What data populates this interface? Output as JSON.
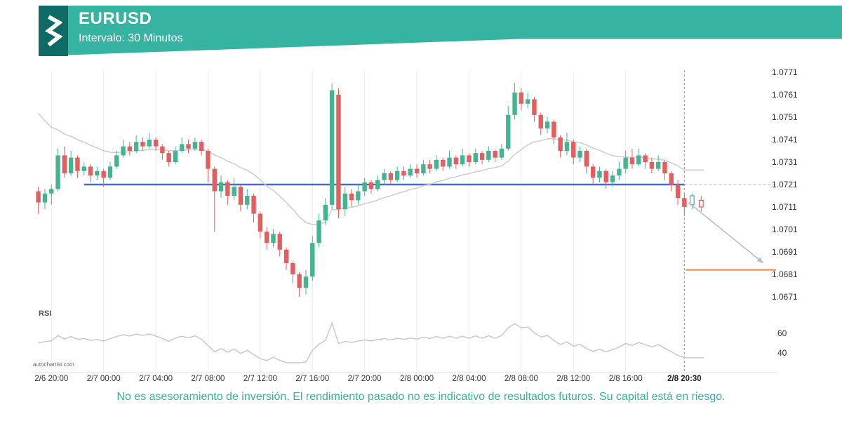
{
  "header": {
    "title": "EURUSD",
    "subtitle": "Intervalo: 30 Minutos"
  },
  "branding": {
    "watermark": "autochartist.com"
  },
  "footer": {
    "disclaimer": "No es asesoramiento de inversión. El rendimiento pasado no es indicativo de resultados futuros. Su capital está en riesgo."
  },
  "colors": {
    "accent_teal": "#36b3a1",
    "logo_teal": "#0d6a64",
    "candle_up": "#43b492",
    "candle_down": "#e45d5f",
    "support_blue": "#3e6fca",
    "target_orange": "#ef8349",
    "ma_gray": "#cfcfcf",
    "rsi_gray": "#c9c9c9"
  },
  "chart_data": {
    "type": "candlestick",
    "symbol": "EURUSD",
    "interval": "30 Minutos",
    "title": "EURUSD 30 minute candlestick chart with support breakout and downside forecast",
    "ylim": [
      1.0665,
      1.0775
    ],
    "grid": "vertical-only",
    "y_tick_labels": [
      "1.0771",
      "1.0761",
      "1.0751",
      "1.0741",
      "1.0731",
      "1.0721",
      "1.0711",
      "1.0701",
      "1.0691",
      "1.0681",
      "1.0671"
    ],
    "x_tick_labels": [
      "2/6 20:00",
      "2/7 00:00",
      "2/7 04:00",
      "2/7 08:00",
      "2/7 12:00",
      "2/7 16:00",
      "2/7 20:00",
      "2/8 00:00",
      "2/8 04:00",
      "2/8 08:00",
      "2/8 12:00",
      "2/8 16:00",
      "2/8 20:30"
    ],
    "x_tick_indices": [
      2,
      10,
      18,
      26,
      34,
      42,
      50,
      58,
      66,
      74,
      82,
      90,
      99
    ],
    "candles": [
      [
        1.0718,
        1.072,
        1.0708,
        1.0713
      ],
      [
        1.0713,
        1.0719,
        1.071,
        1.0717
      ],
      [
        1.0717,
        1.0721,
        1.0712,
        1.0719
      ],
      [
        1.0719,
        1.0737,
        1.0718,
        1.0734
      ],
      [
        1.0734,
        1.0738,
        1.0724,
        1.0726
      ],
      [
        1.0726,
        1.0736,
        1.0725,
        1.0733
      ],
      [
        1.0733,
        1.0734,
        1.0724,
        1.0727
      ],
      [
        1.0727,
        1.0731,
        1.0725,
        1.0729
      ],
      [
        1.0729,
        1.073,
        1.0722,
        1.0725
      ],
      [
        1.0725,
        1.0729,
        1.0723,
        1.0727
      ],
      [
        1.0727,
        1.0728,
        1.072,
        1.0724
      ],
      [
        1.0724,
        1.0731,
        1.0723,
        1.0729
      ],
      [
        1.0729,
        1.0736,
        1.0728,
        1.0734
      ],
      [
        1.0734,
        1.0741,
        1.0733,
        1.0738
      ],
      [
        1.0738,
        1.074,
        1.0734,
        1.0736
      ],
      [
        1.0736,
        1.0743,
        1.0735,
        1.074
      ],
      [
        1.074,
        1.0742,
        1.0736,
        1.0738
      ],
      [
        1.0738,
        1.0744,
        1.0737,
        1.0741
      ],
      [
        1.0741,
        1.0742,
        1.0736,
        1.0738
      ],
      [
        1.0738,
        1.0739,
        1.0732,
        1.0735
      ],
      [
        1.0735,
        1.0736,
        1.0729,
        1.0731
      ],
      [
        1.0731,
        1.0738,
        1.073,
        1.0736
      ],
      [
        1.0736,
        1.0742,
        1.0735,
        1.0739
      ],
      [
        1.0739,
        1.0741,
        1.0735,
        1.0737
      ],
      [
        1.0737,
        1.0742,
        1.0736,
        1.074
      ],
      [
        1.074,
        1.0741,
        1.0734,
        1.0736
      ],
      [
        1.0736,
        1.0737,
        1.0722,
        1.0728
      ],
      [
        1.0728,
        1.0729,
        1.07,
        1.0718
      ],
      [
        1.0718,
        1.0725,
        1.0715,
        1.0722
      ],
      [
        1.0722,
        1.0723,
        1.0712,
        1.0716
      ],
      [
        1.0716,
        1.0724,
        1.0714,
        1.072
      ],
      [
        1.072,
        1.0721,
        1.0709,
        1.0712
      ],
      [
        1.0712,
        1.0719,
        1.071,
        1.0716
      ],
      [
        1.0716,
        1.0717,
        1.0704,
        1.0708
      ],
      [
        1.0708,
        1.0709,
        1.0697,
        1.07
      ],
      [
        1.07,
        1.0702,
        1.0692,
        1.0695
      ],
      [
        1.0695,
        1.0701,
        1.0693,
        1.0699
      ],
      [
        1.0699,
        1.07,
        1.0689,
        1.0692
      ],
      [
        1.0692,
        1.0693,
        1.0683,
        1.0686
      ],
      [
        1.0686,
        1.0687,
        1.0677,
        1.0681
      ],
      [
        1.0681,
        1.0682,
        1.0671,
        1.0675
      ],
      [
        1.0675,
        1.0683,
        1.0672,
        1.068
      ],
      [
        1.068,
        1.0698,
        1.0678,
        1.0695
      ],
      [
        1.0695,
        1.0708,
        1.0693,
        1.0705
      ],
      [
        1.0705,
        1.0715,
        1.0703,
        1.0712
      ],
      [
        1.0712,
        1.0766,
        1.071,
        1.0763
      ],
      [
        1.0761,
        1.0764,
        1.0706,
        1.071
      ],
      [
        1.071,
        1.072,
        1.0707,
        1.0717
      ],
      [
        1.0717,
        1.0719,
        1.0711,
        1.0714
      ],
      [
        1.0714,
        1.0721,
        1.0712,
        1.0718
      ],
      [
        1.0718,
        1.0724,
        1.0716,
        1.0722
      ],
      [
        1.0722,
        1.0723,
        1.0717,
        1.0719
      ],
      [
        1.0719,
        1.0725,
        1.0718,
        1.0723
      ],
      [
        1.0723,
        1.0728,
        1.0721,
        1.0726
      ],
      [
        1.0726,
        1.0727,
        1.0721,
        1.0723
      ],
      [
        1.0723,
        1.0729,
        1.0722,
        1.0727
      ],
      [
        1.0727,
        1.0729,
        1.0723,
        1.0725
      ],
      [
        1.0725,
        1.073,
        1.0724,
        1.0728
      ],
      [
        1.0728,
        1.073,
        1.0724,
        1.0726
      ],
      [
        1.0726,
        1.0732,
        1.0725,
        1.073
      ],
      [
        1.073,
        1.0732,
        1.0726,
        1.0728
      ],
      [
        1.0728,
        1.0734,
        1.0727,
        1.0732
      ],
      [
        1.0732,
        1.0733,
        1.0727,
        1.0729
      ],
      [
        1.0729,
        1.0736,
        1.0728,
        1.0733
      ],
      [
        1.0733,
        1.0734,
        1.0728,
        1.073
      ],
      [
        1.073,
        1.0737,
        1.0729,
        1.0734
      ],
      [
        1.0734,
        1.0735,
        1.0729,
        1.0731
      ],
      [
        1.0731,
        1.0737,
        1.073,
        1.0735
      ],
      [
        1.0735,
        1.0736,
        1.073,
        1.0732
      ],
      [
        1.0732,
        1.0738,
        1.0731,
        1.0736
      ],
      [
        1.0736,
        1.0737,
        1.0731,
        1.0733
      ],
      [
        1.0733,
        1.0739,
        1.0732,
        1.0737
      ],
      [
        1.0737,
        1.0756,
        1.0736,
        1.0752
      ],
      [
        1.0752,
        1.0766,
        1.075,
        1.0762
      ],
      [
        1.0762,
        1.0764,
        1.0754,
        1.0757
      ],
      [
        1.0757,
        1.0762,
        1.0755,
        1.0759
      ],
      [
        1.0759,
        1.076,
        1.0749,
        1.0752
      ],
      [
        1.0752,
        1.0753,
        1.0743,
        1.0746
      ],
      [
        1.0746,
        1.0751,
        1.0744,
        1.0749
      ],
      [
        1.0749,
        1.075,
        1.0739,
        1.0742
      ],
      [
        1.0742,
        1.0743,
        1.0733,
        1.0736
      ],
      [
        1.0736,
        1.0744,
        1.0734,
        1.074
      ],
      [
        1.074,
        1.0741,
        1.073,
        1.0733
      ],
      [
        1.0733,
        1.0738,
        1.0731,
        1.0736
      ],
      [
        1.0736,
        1.0737,
        1.0726,
        1.0729
      ],
      [
        1.0729,
        1.073,
        1.0721,
        1.0724
      ],
      [
        1.0724,
        1.0729,
        1.0722,
        1.0727
      ],
      [
        1.0727,
        1.0728,
        1.0719,
        1.0722
      ],
      [
        1.0722,
        1.0727,
        1.072,
        1.0725
      ],
      [
        1.0725,
        1.0731,
        1.0723,
        1.0728
      ],
      [
        1.0728,
        1.0736,
        1.0726,
        1.0733
      ],
      [
        1.0733,
        1.0737,
        1.0728,
        1.073
      ],
      [
        1.073,
        1.0737,
        1.0729,
        1.0734
      ],
      [
        1.0734,
        1.0735,
        1.0728,
        1.0731
      ],
      [
        1.0731,
        1.0733,
        1.0726,
        1.0728
      ],
      [
        1.0728,
        1.0734,
        1.0727,
        1.0731
      ],
      [
        1.0731,
        1.0732,
        1.0723,
        1.0726
      ],
      [
        1.0726,
        1.0727,
        1.0718,
        1.0721
      ],
      [
        1.0721,
        1.0723,
        1.0712,
        1.0715
      ],
      [
        1.0715,
        1.0717,
        1.0707,
        1.0711
      ]
    ],
    "forecast_candles": [
      {
        "o": 1.0712,
        "h": 1.0717,
        "l": 1.071,
        "c": 1.0716,
        "dir": "up"
      },
      {
        "o": 1.0714,
        "h": 1.0716,
        "l": 1.0709,
        "c": 1.0711,
        "dir": "down"
      }
    ],
    "support_line": {
      "price": 1.0721,
      "start_index": 7
    },
    "target_line": {
      "price": 1.0683
    },
    "forecast_arrow": {
      "from_price": 1.0713,
      "to_price": 1.0686
    },
    "moving_average": {
      "period": 20,
      "seed": 1.0757
    },
    "rsi_pane": {
      "label": "RSI",
      "period": 14,
      "tick_labels": [
        "60",
        "40"
      ],
      "tick_values": [
        60,
        40
      ]
    }
  }
}
